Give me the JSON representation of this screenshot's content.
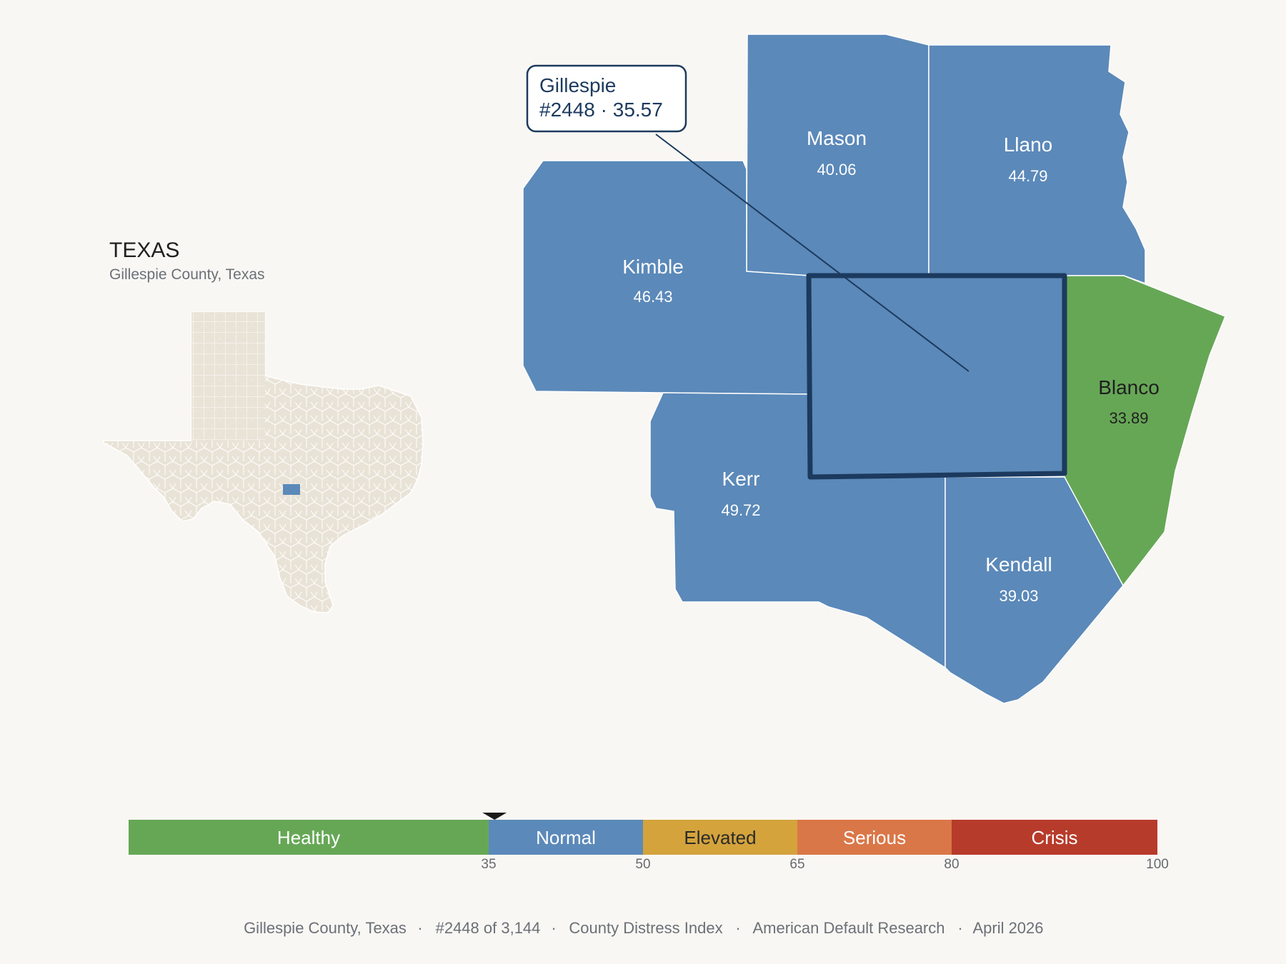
{
  "inset": {
    "state_title": "TEXAS",
    "subtitle": "Gillespie County, Texas"
  },
  "callout": {
    "line1": "Gillespie",
    "line2": "#2448 · 35.57"
  },
  "counties": [
    {
      "id": "mason",
      "name": "Mason",
      "value": "40.06",
      "color": "#5b89b9"
    },
    {
      "id": "llano",
      "name": "Llano",
      "value": "44.79",
      "color": "#5b89b9"
    },
    {
      "id": "kimble",
      "name": "Kimble",
      "value": "46.43",
      "color": "#5b89b9"
    },
    {
      "id": "blanco",
      "name": "Blanco",
      "value": "33.89",
      "color": "#66a756"
    },
    {
      "id": "kerr",
      "name": "Kerr",
      "value": "49.72",
      "color": "#5b89b9"
    },
    {
      "id": "kendall",
      "name": "Kendall",
      "value": "39.03",
      "color": "#5b89b9"
    }
  ],
  "selected_county": {
    "name": "Gillespie",
    "rank": "#2448",
    "value": 35.57,
    "color": "#5b89b9",
    "outline": "#1c3a5e"
  },
  "scale": {
    "min": 0,
    "max": 100,
    "bands": [
      {
        "label": "Healthy",
        "from": 0,
        "to": 35,
        "color": "#66a756",
        "text_color": "#ffffff"
      },
      {
        "label": "Normal",
        "from": 35,
        "to": 50,
        "color": "#5b89b9",
        "text_color": "#ffffff"
      },
      {
        "label": "Elevated",
        "from": 50,
        "to": 65,
        "color": "#d4a33c",
        "text_color": "#2a2a2a"
      },
      {
        "label": "Serious",
        "from": 65,
        "to": 80,
        "color": "#da7748",
        "text_color": "#ffffff"
      },
      {
        "label": "Crisis",
        "from": 80,
        "to": 100,
        "color": "#b73b2b",
        "text_color": "#ffffff"
      }
    ],
    "ticks": [
      "35",
      "50",
      "65",
      "80",
      "100"
    ],
    "marker_value": 35.57
  },
  "footer": {
    "county": "Gillespie County, Texas",
    "rank": "#2448 of 3,144",
    "index": "County Distress Index",
    "source": "American Default Research",
    "date": "April 2026",
    "separator": "·"
  },
  "colors": {
    "background": "#f9f7f3",
    "state_fill": "#e9e3d7",
    "highlight": "#5b89b9",
    "outline": "#1c3a5e"
  }
}
